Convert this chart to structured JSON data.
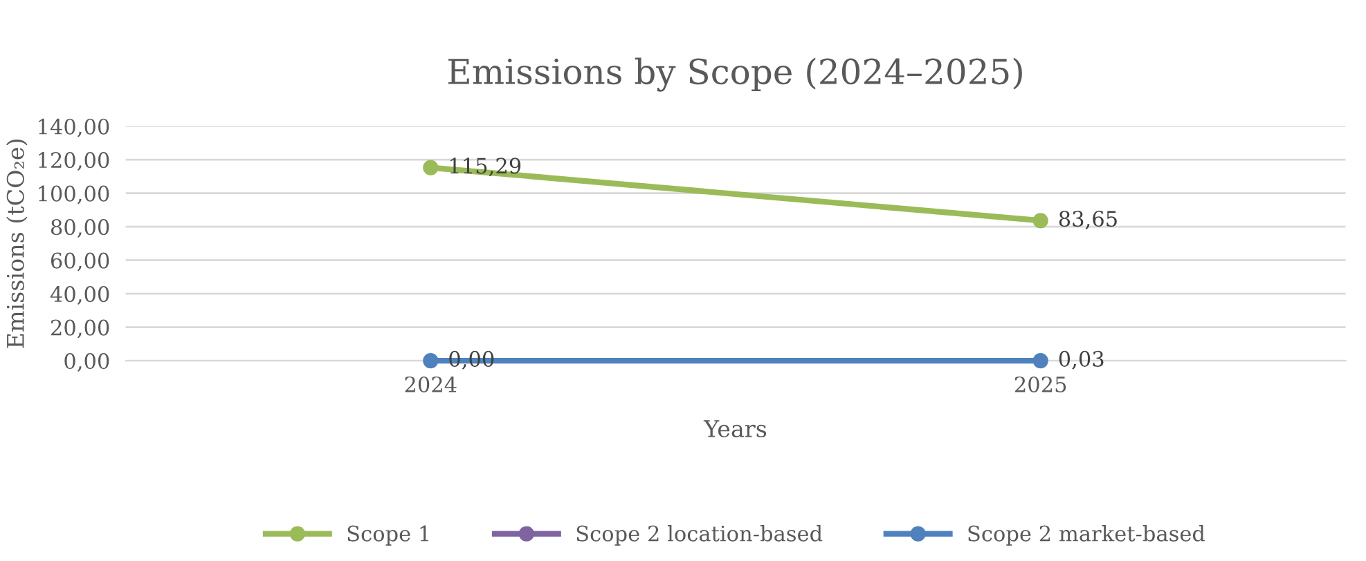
{
  "chart_data": {
    "type": "line",
    "title": "Emissions by Scope (2024–2025)",
    "xlabel": "Years",
    "ylabel": "Emissions (tCO₂e)",
    "categories": [
      "2024",
      "2025"
    ],
    "series": [
      {
        "name": "Scope 1",
        "color": "#9bbb59",
        "values": [
          115.29,
          83.65
        ],
        "value_labels": [
          "115,29",
          "83,65"
        ]
      },
      {
        "name": "Scope 2 location-based",
        "color": "#8064a2",
        "values": [
          null,
          null
        ]
      },
      {
        "name": "Scope 2 market-based",
        "color": "#4f81bd",
        "values": [
          0,
          0.03
        ],
        "value_labels": [
          "0,00",
          "0,03"
        ]
      }
    ],
    "ylim": [
      0,
      140
    ],
    "yticks": [
      {
        "value": 0,
        "label": "0,00"
      },
      {
        "value": 20,
        "label": "20,00"
      },
      {
        "value": 40,
        "label": "40,00"
      },
      {
        "value": 60,
        "label": "60,00"
      },
      {
        "value": 80,
        "label": "80,00"
      },
      {
        "value": 100,
        "label": "100,00"
      },
      {
        "value": 120,
        "label": "120,00"
      },
      {
        "value": 140,
        "label": "140,00"
      }
    ],
    "grid": "y",
    "legend": "bottom",
    "marker": "circle",
    "line_style": "solid"
  }
}
